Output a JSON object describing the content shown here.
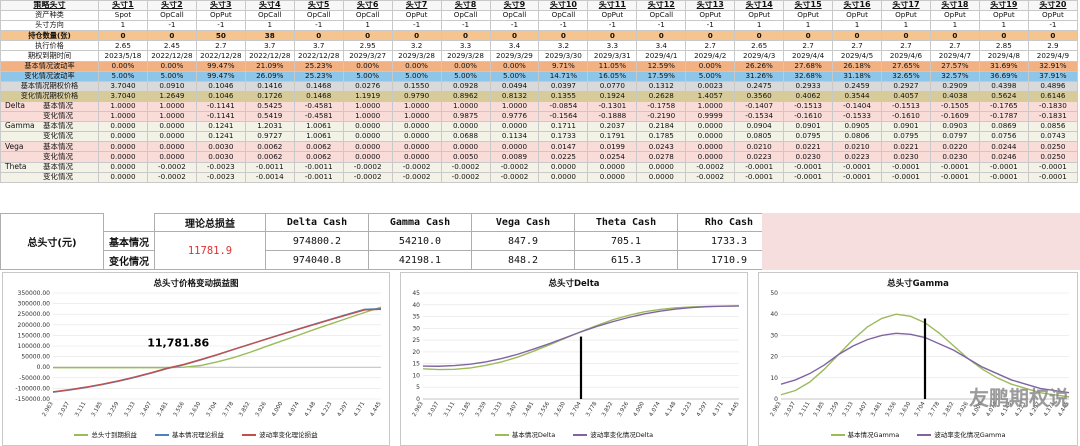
{
  "table": {
    "strategy_label": "策略头寸",
    "columns": [
      "头寸1",
      "头寸2",
      "头寸3",
      "头寸4",
      "头寸5",
      "头寸6",
      "头寸7",
      "头寸8",
      "头寸9",
      "头寸10",
      "头寸11",
      "头寸12",
      "头寸13",
      "头寸14",
      "头寸15",
      "头寸16",
      "头寸17",
      "头寸18",
      "头寸19",
      "头寸20"
    ],
    "rows": [
      {
        "label": "资产种类",
        "cls": "",
        "values": [
          "Spot",
          "OpCall",
          "OpPut",
          "OpCall",
          "OpCall",
          "OpCall",
          "OpPut",
          "OpCall",
          "OpCall",
          "OpCall",
          "OpPut",
          "OpCall",
          "OpPut",
          "OpPut",
          "OpPut",
          "OpPut",
          "OpPut",
          "OpPut",
          "OpPut",
          "OpPut"
        ]
      },
      {
        "label": "头寸方向",
        "cls": "",
        "values": [
          "1",
          "-1",
          "-1",
          "1",
          "-1",
          "1",
          "-1",
          "-1",
          "-1",
          "-1",
          "-1",
          "-1",
          "-1",
          "1",
          "1",
          "1",
          "1",
          "1",
          "1",
          "-1"
        ]
      },
      {
        "label": "持仓数量(张)",
        "cls": "r-pos",
        "values": [
          "0",
          "0",
          "50",
          "38",
          "0",
          "0",
          "0",
          "0",
          "0",
          "0",
          "0",
          "0",
          "0",
          "0",
          "0",
          "0",
          "0",
          "0",
          "0",
          "0"
        ]
      },
      {
        "label": "执行价格",
        "cls": "",
        "values": [
          "2.65",
          "2.45",
          "2.7",
          "3.7",
          "3.7",
          "2.95",
          "3.2",
          "3.3",
          "3.4",
          "3.2",
          "3.3",
          "3.4",
          "2.7",
          "2.65",
          "2.7",
          "2.7",
          "2.7",
          "2.7",
          "2.85",
          "2.9"
        ]
      },
      {
        "label": "期权到期时间",
        "cls": "",
        "values": [
          "2023/5/18",
          "2022/12/28",
          "2022/12/28",
          "2022/12/28",
          "2022/12/28",
          "2029/3/27",
          "2029/3/28",
          "2029/3/28",
          "2029/3/29",
          "2029/3/30",
          "2029/3/31",
          "2029/4/1",
          "2029/4/2",
          "2029/4/3",
          "2029/4/4",
          "2029/4/5",
          "2029/4/6",
          "2029/4/7",
          "2029/4/8",
          "2029/4/9"
        ]
      },
      {
        "label": "基本情况波动率",
        "cls": "r-base",
        "values": [
          "0.00%",
          "0.00%",
          "99.47%",
          "21.09%",
          "25.23%",
          "0.00%",
          "0.00%",
          "0.00%",
          "0.00%",
          "9.71%",
          "11.05%",
          "12.59%",
          "0.00%",
          "26.26%",
          "27.68%",
          "26.18%",
          "27.65%",
          "27.57%",
          "31.69%",
          "32.91%"
        ]
      },
      {
        "label": "变化情况波动率",
        "cls": "r-chg",
        "values": [
          "5.00%",
          "5.00%",
          "99.47%",
          "26.09%",
          "25.23%",
          "5.00%",
          "5.00%",
          "5.00%",
          "5.00%",
          "14.71%",
          "16.05%",
          "17.59%",
          "5.00%",
          "31.26%",
          "32.68%",
          "31.18%",
          "32.65%",
          "32.57%",
          "36.69%",
          "37.91%"
        ]
      },
      {
        "label": "基本情况期权价格",
        "cls": "r-pbase",
        "values": [
          "3.7040",
          "0.0910",
          "0.1046",
          "0.1416",
          "0.1468",
          "0.0276",
          "0.1550",
          "0.0928",
          "0.0494",
          "0.0397",
          "0.0770",
          "0.1312",
          "0.0023",
          "0.2475",
          "0.2933",
          "0.2459",
          "0.2927",
          "0.2909",
          "0.4398",
          "0.4896"
        ]
      },
      {
        "label": "变化情况期权价格",
        "cls": "r-pchg",
        "values": [
          "3.7040",
          "1.2649",
          "0.1046",
          "0.1726",
          "0.1468",
          "1.1919",
          "0.9790",
          "0.8962",
          "0.8132",
          "0.1355",
          "0.1924",
          "0.2628",
          "1.4057",
          "0.3560",
          "0.4062",
          "0.3544",
          "0.4057",
          "0.4038",
          "0.5624",
          "0.6146"
        ]
      }
    ],
    "greek_groups": [
      {
        "name": "Delta",
        "cls": "g-delta",
        "base": [
          "1.0000",
          "1.0000",
          "-0.1141",
          "0.5425",
          "-0.4581",
          "1.0000",
          "1.0000",
          "1.0000",
          "1.0000",
          "-0.0854",
          "-0.1301",
          "-0.1758",
          "1.0000",
          "-0.1407",
          "-0.1513",
          "-0.1404",
          "-0.1513",
          "-0.1505",
          "-0.1765",
          "-0.1830"
        ],
        "chg": [
          "1.0000",
          "1.0000",
          "-0.1141",
          "0.5419",
          "-0.4581",
          "1.0000",
          "1.0000",
          "0.9875",
          "0.9776",
          "-0.1564",
          "-0.1888",
          "-0.2190",
          "0.9999",
          "-0.1534",
          "-0.1610",
          "-0.1533",
          "-0.1610",
          "-0.1609",
          "-0.1787",
          "-0.1831"
        ]
      },
      {
        "name": "Gamma",
        "cls": "g-gamma",
        "base": [
          "0.0000",
          "0.0000",
          "0.1241",
          "1.2031",
          "1.0061",
          "0.0000",
          "0.0000",
          "0.0000",
          "0.0000",
          "0.1711",
          "0.2037",
          "0.2184",
          "0.0000",
          "0.0904",
          "0.0901",
          "0.0905",
          "0.0901",
          "0.0903",
          "0.0869",
          "0.0856"
        ],
        "chg": [
          "0.0000",
          "0.0000",
          "0.1241",
          "0.9727",
          "1.0061",
          "0.0000",
          "0.0000",
          "0.0688",
          "0.1134",
          "0.1733",
          "0.1791",
          "0.1785",
          "0.0000",
          "0.0805",
          "0.0795",
          "0.0806",
          "0.0795",
          "0.0797",
          "0.0756",
          "0.0743"
        ]
      },
      {
        "name": "Vega",
        "cls": "g-vega",
        "base": [
          "0.0000",
          "0.0000",
          "0.0030",
          "0.0062",
          "0.0062",
          "0.0000",
          "0.0000",
          "0.0000",
          "0.0000",
          "0.0147",
          "0.0199",
          "0.0243",
          "0.0000",
          "0.0210",
          "0.0221",
          "0.0210",
          "0.0221",
          "0.0220",
          "0.0244",
          "0.0250"
        ],
        "chg": [
          "0.0000",
          "0.0000",
          "0.0030",
          "0.0062",
          "0.0062",
          "0.0000",
          "0.0000",
          "0.0050",
          "0.0089",
          "0.0225",
          "0.0254",
          "0.0278",
          "0.0000",
          "0.0223",
          "0.0230",
          "0.0223",
          "0.0230",
          "0.0230",
          "0.0246",
          "0.0250"
        ]
      },
      {
        "name": "Theta",
        "cls": "g-theta",
        "base": [
          "0.0000",
          "-0.0002",
          "-0.0023",
          "-0.0011",
          "-0.0011",
          "-0.0002",
          "-0.0002",
          "-0.0002",
          "-0.0002",
          "0.0000",
          "0.0000",
          "0.0000",
          "-0.0002",
          "-0.0001",
          "-0.0001",
          "-0.0001",
          "-0.0001",
          "-0.0001",
          "-0.0001",
          "-0.0001"
        ],
        "chg": [
          "0.0000",
          "-0.0002",
          "-0.0023",
          "-0.0014",
          "-0.0011",
          "-0.0002",
          "-0.0002",
          "-0.0002",
          "-0.0002",
          "0.0000",
          "0.0000",
          "0.0000",
          "-0.0002",
          "-0.0001",
          "-0.0001",
          "-0.0001",
          "-0.0001",
          "-0.0001",
          "-0.0001",
          "-0.0001"
        ]
      }
    ],
    "base_label": "基本情况",
    "chg_label": "变化情况"
  },
  "summary": {
    "total_label": "总头寸(元)",
    "pnl_label": "理论总损益",
    "pnl_value": "11781.9",
    "row_base": "基本情况",
    "row_chg": "变化情况",
    "headers": [
      "Delta Cash",
      "Gamma Cash",
      "Vega Cash",
      "Theta Cash",
      "Rho Cash"
    ],
    "base": [
      "974800.2",
      "54210.0",
      "847.9",
      "705.1",
      "1733.3"
    ],
    "chg": [
      "974040.8",
      "42198.1",
      "848.2",
      "615.3",
      "1710.9"
    ]
  },
  "chart_data": [
    {
      "type": "line",
      "title": "总头寸价格变动损益图",
      "x": [
        2.963,
        3.037,
        3.111,
        3.185,
        3.259,
        3.333,
        3.407,
        3.481,
        3.556,
        3.63,
        3.704,
        3.778,
        3.852,
        3.926,
        4.0,
        4.074,
        4.148,
        4.223,
        4.297,
        4.371,
        4.445
      ],
      "ylim": [
        -150000,
        350000
      ],
      "yticks": [
        -150000,
        -100000,
        -50000,
        0,
        50000,
        100000,
        150000,
        200000,
        250000,
        300000,
        350000
      ],
      "ytick_labels": [
        "-150000.00",
        "-100000.00",
        "-50000.00",
        "0.00",
        "50000.00",
        "100000.00",
        "150000.00",
        "200000.00",
        "250000.00",
        "300000.00",
        "350000.00"
      ],
      "annotation": "11,781.86",
      "series": [
        {
          "name": "总头寸到期损益",
          "color": "#9bbb59",
          "values": [
            -2000,
            -2000,
            -2000,
            -2000,
            -2000,
            -2000,
            -2000,
            -2000,
            0,
            8000,
            25000,
            45000,
            70000,
            98000,
            125000,
            152000,
            180000,
            206000,
            232000,
            258000,
            283000
          ]
        },
        {
          "name": "基本情况理论损益",
          "color": "#4f81bd",
          "values": [
            -118000,
            -108000,
            -96000,
            -82000,
            -66000,
            -48000,
            -28000,
            -6000,
            11782,
            34000,
            58000,
            83000,
            108000,
            133000,
            157000,
            181000,
            205000,
            228000,
            251000,
            273000,
            276000
          ]
        },
        {
          "name": "波动率变化理论损益",
          "color": "#c0504d",
          "values": [
            -116000,
            -106000,
            -94000,
            -80000,
            -64000,
            -46000,
            -26000,
            -4000,
            13500,
            36000,
            59000,
            84000,
            108000,
            132000,
            156000,
            180000,
            203000,
            226000,
            248000,
            270000,
            273000
          ]
        }
      ]
    },
    {
      "type": "line",
      "title": "总头寸Delta",
      "x": [
        2.963,
        3.037,
        3.111,
        3.185,
        3.259,
        3.333,
        3.407,
        3.481,
        3.556,
        3.63,
        3.704,
        3.778,
        3.852,
        3.926,
        4.0,
        4.074,
        4.148,
        4.223,
        4.297,
        4.371,
        4.445
      ],
      "ylim": [
        0,
        45
      ],
      "yticks": [
        0,
        5,
        10,
        15,
        20,
        25,
        30,
        35,
        40,
        45
      ],
      "series": [
        {
          "name": "基本情况Delta",
          "color": "#9bbb59",
          "values": [
            12.8,
            12.5,
            12.6,
            13.2,
            14.3,
            15.8,
            17.8,
            20.3,
            23.0,
            25.8,
            28.6,
            31.2,
            33.6,
            35.5,
            37.0,
            38.0,
            38.7,
            39.1,
            39.3,
            39.4,
            39.5
          ]
        },
        {
          "name": "波动率变化情况Delta",
          "color": "#8064a2",
          "values": [
            14.0,
            13.9,
            14.2,
            14.8,
            15.8,
            17.2,
            19.0,
            21.2,
            23.5,
            26.0,
            28.5,
            30.8,
            32.8,
            34.6,
            36.1,
            37.3,
            38.2,
            38.8,
            39.2,
            39.4,
            39.5
          ]
        }
      ]
    },
    {
      "type": "line",
      "title": "总头寸Gamma",
      "x": [
        2.963,
        3.037,
        3.111,
        3.185,
        3.259,
        3.333,
        3.407,
        3.481,
        3.556,
        3.63,
        3.704,
        3.778,
        3.852,
        3.926,
        4.0,
        4.074,
        4.148,
        4.223,
        4.297,
        4.371,
        4.445
      ],
      "ylim": [
        0,
        50
      ],
      "yticks": [
        0,
        10,
        20,
        30,
        40,
        50
      ],
      "series": [
        {
          "name": "基本情况Gamma",
          "color": "#9bbb59",
          "values": [
            2,
            4,
            8,
            14,
            21,
            28,
            34,
            38,
            40,
            39,
            36,
            31,
            25,
            19,
            14,
            10,
            7,
            5,
            3,
            2,
            1
          ]
        },
        {
          "name": "波动率变化情况Gamma",
          "color": "#8064a2",
          "values": [
            7,
            9,
            12,
            16,
            21,
            25,
            28,
            30,
            31,
            30.5,
            29,
            26,
            23,
            19,
            15,
            12,
            9,
            7,
            5,
            4,
            3
          ]
        }
      ]
    }
  ],
  "watermark": "友鹏期权说"
}
